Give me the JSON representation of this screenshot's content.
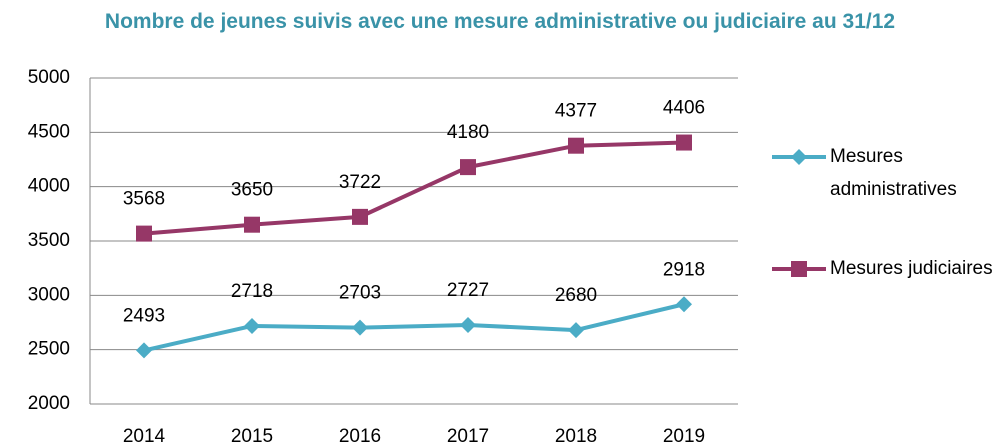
{
  "chart_data": {
    "type": "line",
    "title": "Nombre de jeunes suivis avec une mesure administrative ou judiciaire au 31/12",
    "categories": [
      "2014",
      "2015",
      "2016",
      "2017",
      "2018",
      "2019"
    ],
    "series": [
      {
        "name": "Mesures administratives",
        "color": "#4bacc6",
        "marker": "diamond",
        "values": [
          2493,
          2718,
          2703,
          2727,
          2680,
          2918
        ]
      },
      {
        "name": "Mesures judiciaires",
        "color": "#963767",
        "marker": "square",
        "values": [
          3568,
          3650,
          3722,
          4180,
          4377,
          4406
        ]
      }
    ],
    "ylim": [
      2000,
      5000
    ],
    "yticks": [
      2000,
      2500,
      3000,
      3500,
      4000,
      4500,
      5000
    ],
    "grid": true,
    "legend": "right"
  }
}
